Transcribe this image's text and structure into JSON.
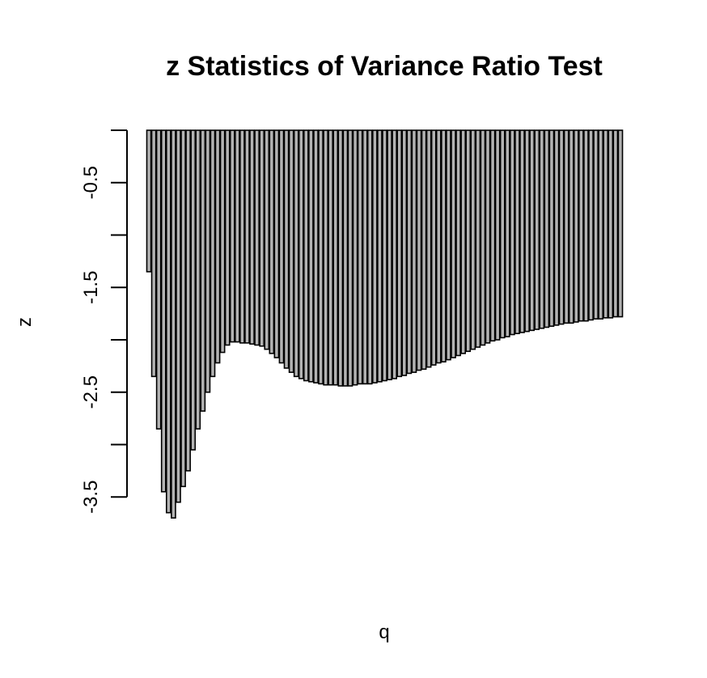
{
  "chart_data": {
    "type": "bar",
    "title": "z Statistics of Variance Ratio Test",
    "xlabel": "q",
    "ylabel": "z",
    "ylim": [
      -3.7,
      0
    ],
    "yticks": [
      -3.5,
      -3.0,
      -2.5,
      -2.0,
      -1.5,
      -1.0,
      -0.5,
      0.0
    ],
    "ytick_labels": [
      "-3.5",
      "",
      "-2.5",
      "",
      "-1.5",
      "",
      "-0.5",
      ""
    ],
    "grid": false,
    "bar_fill": "#b3b3b3",
    "bar_stroke": "#000000",
    "values": [
      -1.35,
      -2.35,
      -2.85,
      -3.45,
      -3.65,
      -3.7,
      -3.55,
      -3.4,
      -3.25,
      -3.05,
      -2.85,
      -2.68,
      -2.5,
      -2.35,
      -2.22,
      -2.12,
      -2.05,
      -2.02,
      -2.02,
      -2.03,
      -2.03,
      -2.04,
      -2.05,
      -2.06,
      -2.09,
      -2.13,
      -2.17,
      -2.22,
      -2.27,
      -2.31,
      -2.35,
      -2.37,
      -2.39,
      -2.4,
      -2.41,
      -2.42,
      -2.43,
      -2.43,
      -2.43,
      -2.44,
      -2.44,
      -2.44,
      -2.43,
      -2.42,
      -2.42,
      -2.42,
      -2.41,
      -2.4,
      -2.39,
      -2.38,
      -2.37,
      -2.35,
      -2.34,
      -2.32,
      -2.31,
      -2.29,
      -2.28,
      -2.26,
      -2.24,
      -2.22,
      -2.21,
      -2.19,
      -2.17,
      -2.15,
      -2.13,
      -2.11,
      -2.09,
      -2.07,
      -2.05,
      -2.03,
      -2.01,
      -2.0,
      -1.98,
      -1.97,
      -1.95,
      -1.94,
      -1.93,
      -1.92,
      -1.91,
      -1.9,
      -1.89,
      -1.88,
      -1.87,
      -1.86,
      -1.85,
      -1.84,
      -1.84,
      -1.83,
      -1.82,
      -1.82,
      -1.81,
      -1.8,
      -1.8,
      -1.79,
      -1.79,
      -1.78,
      -1.78
    ]
  }
}
